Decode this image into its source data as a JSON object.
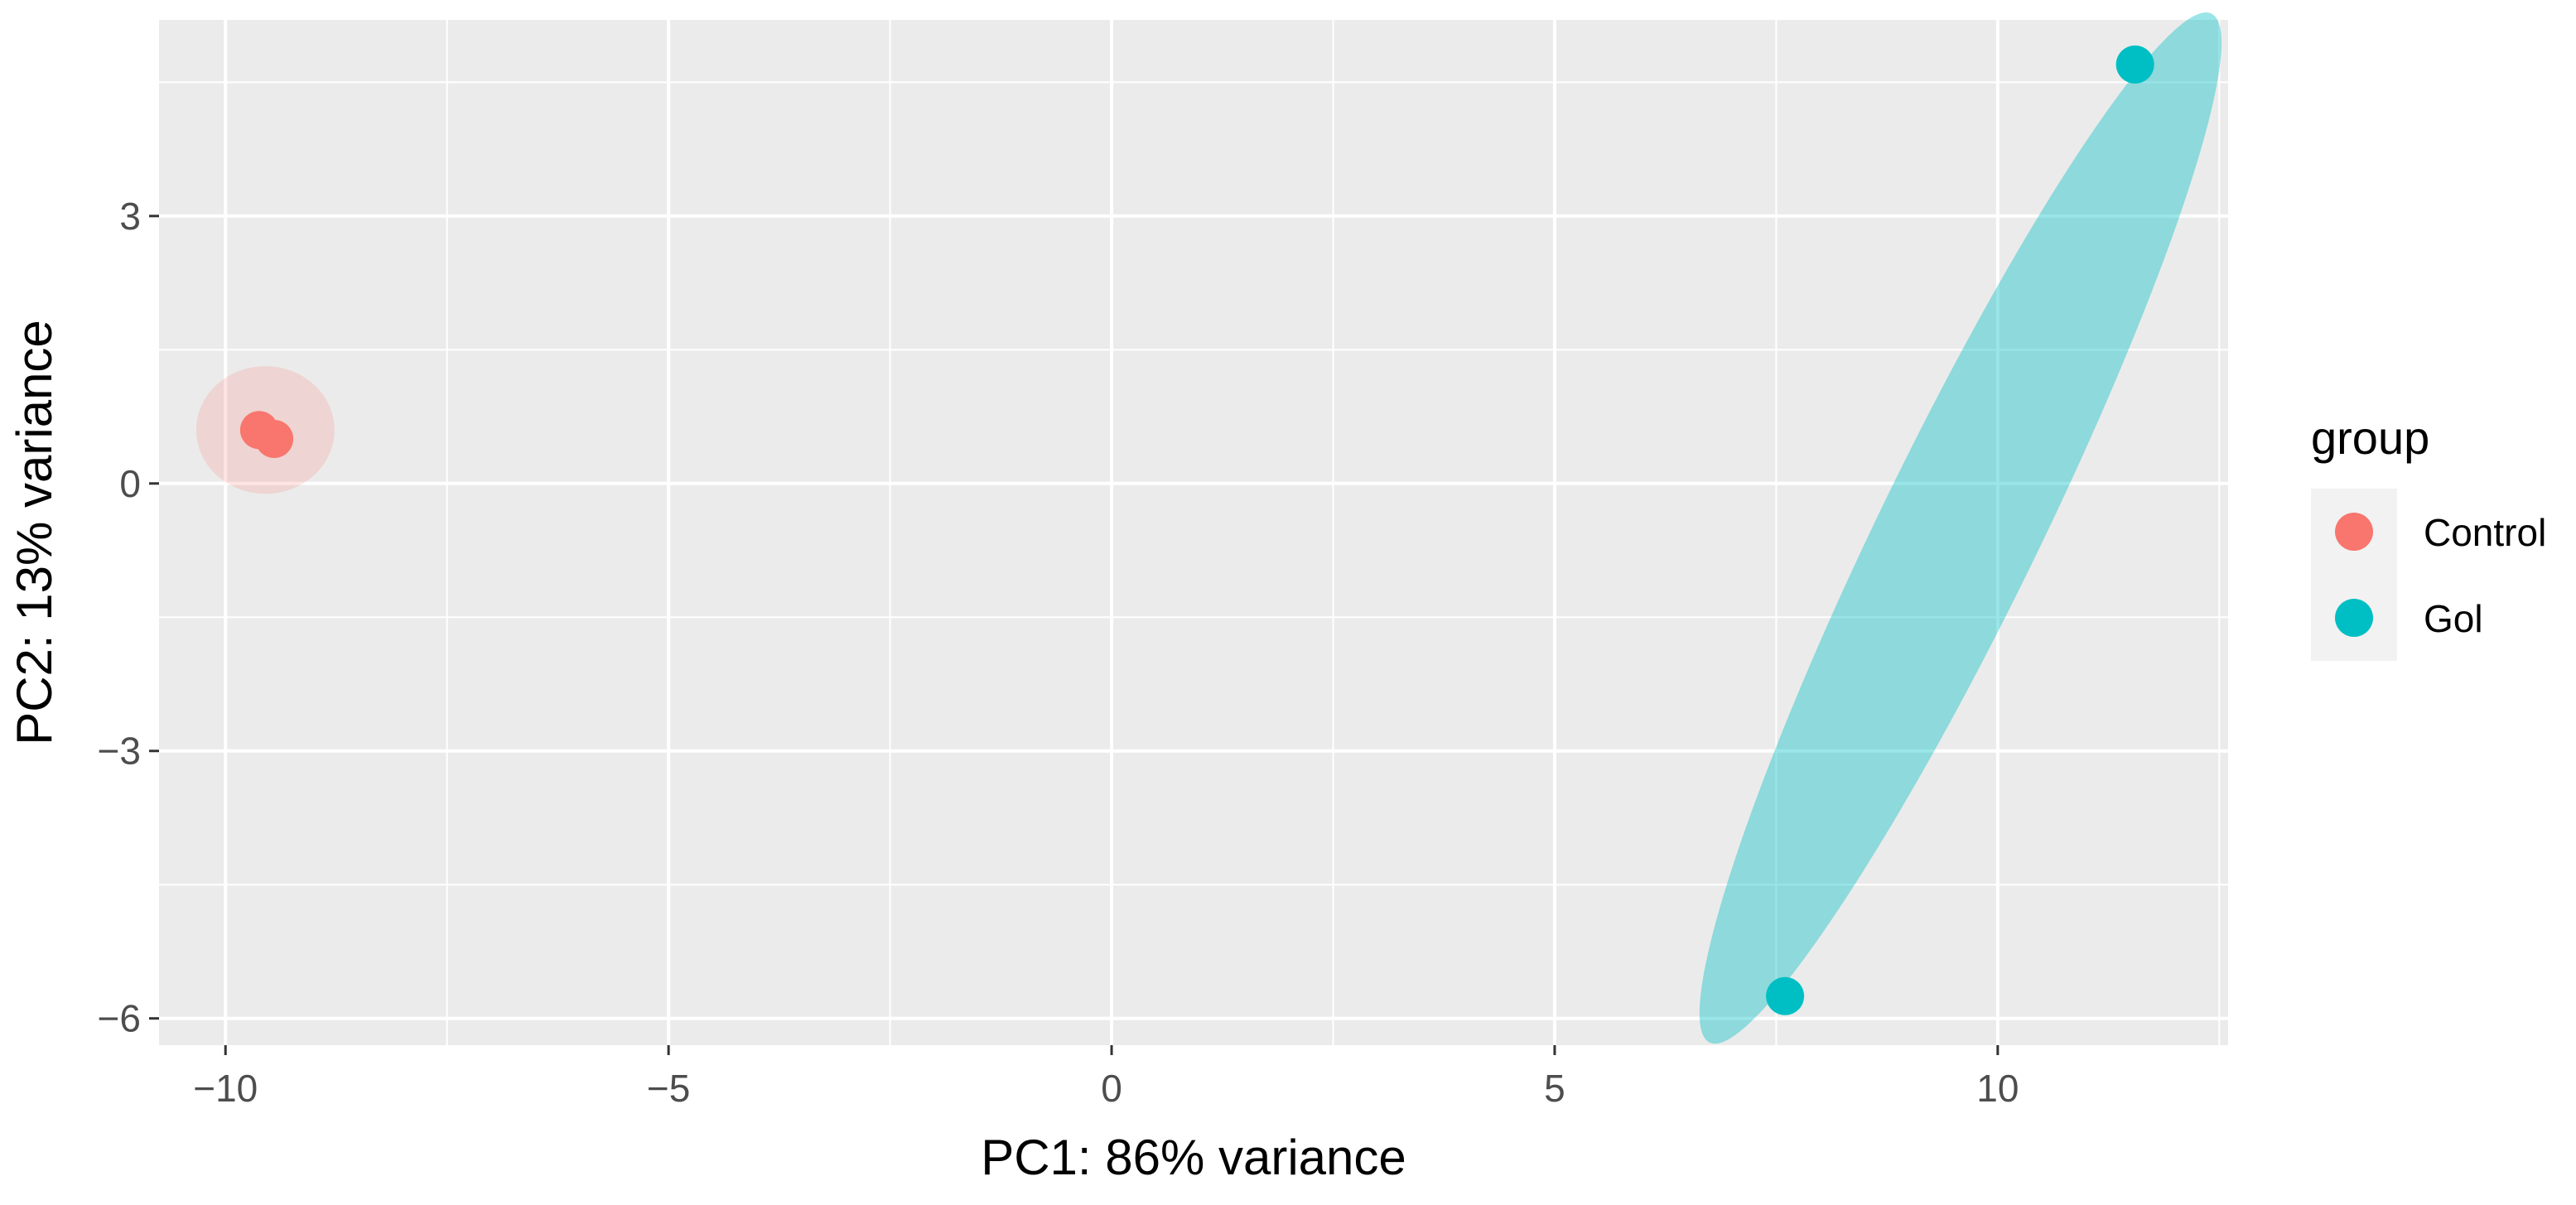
{
  "chart_data": {
    "type": "scatter",
    "title": "",
    "xlabel": "PC1: 86% variance",
    "ylabel": "PC2: 13% variance",
    "xlim": [
      -10.75,
      12.6
    ],
    "ylim": [
      -6.3,
      5.2
    ],
    "x_ticks": [
      -10,
      -5,
      0,
      5,
      10
    ],
    "x_tick_labels": [
      "−10",
      "−5",
      "0",
      "5",
      "10"
    ],
    "y_ticks": [
      -6,
      -3,
      0,
      3
    ],
    "y_tick_labels": [
      "−6",
      "−3",
      "0",
      "3"
    ],
    "grid": true,
    "panel_background": "#ebebeb",
    "legend": {
      "title": "group",
      "placement": "right"
    },
    "series": [
      {
        "name": "Control",
        "color": "#f8766d",
        "points": [
          {
            "x": -9.62,
            "y": 0.6
          },
          {
            "x": -9.45,
            "y": 0.5
          }
        ],
        "ellipse": {
          "cx": -9.55,
          "cy": 0.6,
          "rx": 0.78,
          "ry": 0.72,
          "angle": 0,
          "opacity": 0.2
        }
      },
      {
        "name": "Gol",
        "color": "#00bfc4",
        "points": [
          {
            "x": 7.6,
            "y": -5.75
          },
          {
            "x": 11.55,
            "y": 4.7
          }
        ],
        "ellipse": {
          "cx": 9.58,
          "cy": -0.5,
          "rx": 6.46,
          "ry": 0.9,
          "angle": 64,
          "opacity": 0.4
        }
      }
    ]
  }
}
